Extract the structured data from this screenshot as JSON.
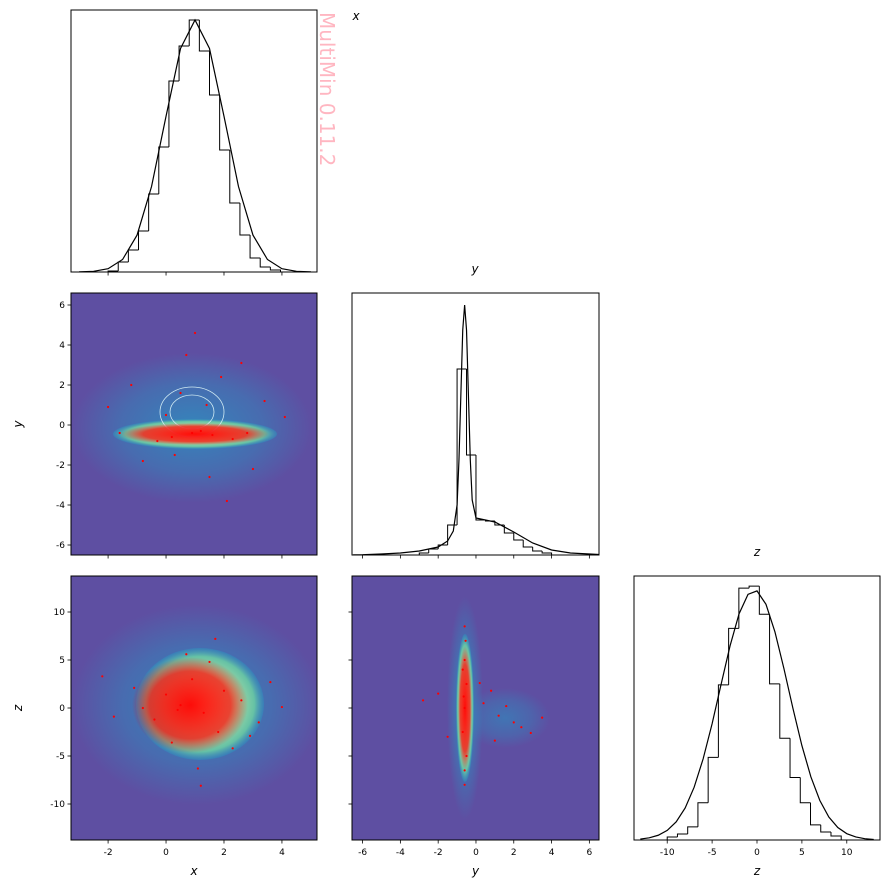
{
  "watermark": "MultiMin 0.11.2",
  "chart_data": [
    {
      "type": "histogram",
      "title": "x",
      "bins": [
        -2.0,
        -1.65,
        -1.3,
        -0.95,
        -0.6,
        -0.25,
        0.1,
        0.45,
        0.8,
        1.15,
        1.5,
        1.85,
        2.2,
        2.55,
        2.9,
        3.25,
        3.6,
        3.95
      ],
      "values": [
        1,
        10,
        22,
        41,
        78,
        125,
        191,
        226,
        252,
        221,
        177,
        122,
        69,
        37,
        14,
        5,
        2
      ],
      "color": "#000000",
      "curve": {
        "x": [
          -3,
          -2.5,
          -2,
          -1.5,
          -1,
          -0.5,
          0,
          0.5,
          1,
          1.5,
          2,
          2.5,
          3,
          3.5,
          4,
          4.5,
          5
        ],
        "y": [
          0.1,
          0.7,
          3.3,
          12.5,
          36.9,
          85.5,
          155.8,
          223.5,
          252,
          223.5,
          155.8,
          85.5,
          36.9,
          12.5,
          3.3,
          0.7,
          0.1
        ]
      },
      "xlim": [
        -3.28,
        5.21
      ],
      "xticks": [
        -2,
        0,
        2,
        4
      ],
      "ylim": [
        0,
        262
      ]
    },
    {
      "type": "scatter",
      "ylabel": "y",
      "color": "#ff0000",
      "facecolor": "#5e4fa2",
      "x": [
        0.2,
        0.9,
        1.6,
        2.3,
        -0.3,
        1.2,
        2.8,
        0.5,
        1.9,
        -1.2,
        3.4,
        0.7,
        1.5,
        -0.8,
        2.6,
        4.1,
        -2.0,
        1.0,
        2.1,
        0.3,
        3.0,
        -1.6,
        1.4,
        0.0
      ],
      "y": [
        -0.6,
        -0.4,
        -0.5,
        -0.7,
        -0.8,
        -0.3,
        -0.4,
        1.6,
        2.4,
        2.0,
        1.2,
        3.5,
        -2.6,
        -1.8,
        3.1,
        0.4,
        0.9,
        4.6,
        -3.8,
        -1.5,
        -2.2,
        -0.4,
        1.0,
        0.5
      ],
      "xlim": [
        -3.28,
        5.21
      ],
      "xticks": [
        -2,
        0,
        2,
        4
      ],
      "ylim": [
        -6.5,
        6.6
      ],
      "yticks": [
        -6,
        -4,
        -2,
        0,
        2,
        4,
        6
      ]
    },
    {
      "type": "histogram",
      "title": "y",
      "bins": [
        -3.0,
        -2.5,
        -2.0,
        -1.5,
        -1.0,
        -0.5,
        0.0,
        0.5,
        1.0,
        1.5,
        2.0,
        2.5,
        3.0,
        3.5,
        4.0
      ],
      "values": [
        2,
        6,
        10,
        30,
        186,
        100,
        35,
        34,
        30,
        22,
        15,
        8,
        4,
        2
      ],
      "color": "#000000",
      "curve": {
        "x": [
          -6.5,
          -6,
          -5,
          -4,
          -3,
          -2,
          -1.5,
          -1.2,
          -1,
          -0.9,
          -0.8,
          -0.7,
          -0.6,
          -0.5,
          -0.4,
          -0.3,
          -0.2,
          0,
          0.5,
          1,
          2,
          3,
          4,
          5,
          6,
          6.5
        ],
        "y": [
          0.2,
          0.3,
          1,
          2,
          4,
          8,
          14,
          24,
          50,
          95,
          160,
          225,
          250,
          225,
          160,
          95,
          55,
          37,
          35,
          33,
          23,
          12,
          5,
          2,
          1,
          0.5
        ]
      },
      "xlim": [
        -6.56,
        6.51
      ],
      "xticks": [
        -6,
        -4,
        -2,
        0,
        2,
        4,
        6
      ],
      "ylim": [
        0,
        262
      ]
    },
    {
      "type": "scatter",
      "xlabel": "x",
      "ylabel": "z",
      "color": "#ff0000",
      "facecolor": "#5e4fa2",
      "x": [
        0.5,
        1.3,
        2.0,
        -0.4,
        1.8,
        0.9,
        2.6,
        -1.1,
        3.2,
        0.2,
        1.5,
        2.3,
        -0.8,
        0.7,
        1.1,
        3.6,
        -1.8,
        2.9,
        0.0,
        1.7,
        4.0,
        -2.2,
        1.2,
        0.4
      ],
      "y": [
        0.3,
        -0.5,
        1.8,
        -1.2,
        -2.5,
        3.0,
        0.8,
        2.1,
        -1.5,
        -3.6,
        4.8,
        -4.2,
        0.0,
        5.6,
        -6.3,
        2.7,
        -0.9,
        -2.9,
        1.4,
        7.2,
        0.1,
        3.3,
        -8.1,
        -0.2
      ],
      "xlim": [
        -3.28,
        5.21
      ],
      "xticks": [
        -2,
        0,
        2,
        4
      ],
      "ylim": [
        -13.75,
        13.75
      ],
      "yticks": [
        -10,
        -5,
        0,
        5,
        10
      ]
    },
    {
      "type": "scatter",
      "xlabel": "y",
      "color": "#ff0000",
      "facecolor": "#5e4fa2",
      "x": [
        -0.6,
        -0.5,
        -0.7,
        -0.6,
        -0.5,
        -0.7,
        -0.6,
        -0.55,
        -0.65,
        0.4,
        1.2,
        2.0,
        0.8,
        1.6,
        2.9,
        -2.0,
        -1.5,
        3.5,
        0.2,
        -2.8,
        1.0,
        2.4,
        -0.6,
        -0.6
      ],
      "y": [
        0.0,
        2.5,
        -2.5,
        5.0,
        -5.0,
        4.0,
        -6.5,
        7.0,
        1.2,
        0.5,
        -0.8,
        -1.5,
        1.8,
        0.2,
        -2.6,
        1.5,
        -3.0,
        -1.0,
        2.6,
        0.8,
        -3.4,
        -2.0,
        -8.0,
        8.5
      ],
      "xlim": [
        -6.56,
        6.51
      ],
      "xticks": [
        -6,
        -4,
        -2,
        0,
        2,
        4,
        6
      ],
      "ylim": [
        -13.75,
        13.75
      ],
      "yticks": [
        -10,
        -5,
        0,
        5,
        10
      ]
    },
    {
      "type": "histogram",
      "title": "z",
      "xlabel": "z",
      "bins": [
        -10.0,
        -8.86,
        -7.72,
        -6.58,
        -5.44,
        -4.3,
        -3.16,
        -2.02,
        -0.88,
        0.26,
        1.4,
        2.54,
        3.68,
        4.82,
        5.96,
        7.1,
        8.24,
        9.38
      ],
      "values": [
        3,
        6,
        13,
        37,
        82,
        154,
        210,
        250,
        252,
        224,
        155,
        101,
        62,
        37,
        15,
        8,
        4
      ],
      "color": "#000000",
      "curve": {
        "x": [
          -13,
          -12,
          -11,
          -10,
          -9,
          -8,
          -7,
          -6,
          -5,
          -4,
          -3,
          -2,
          -1,
          0,
          1,
          2,
          3,
          4,
          5,
          6,
          7,
          8,
          9,
          10,
          11,
          12,
          13
        ],
        "y": [
          0.9,
          2.2,
          4.7,
          9.5,
          18.0,
          31.8,
          52.4,
          80.5,
          115.4,
          154.4,
          192.7,
          224.4,
          243.8,
          247.2,
          233.9,
          206.5,
          170.1,
          130.7,
          93.7,
          62.7,
          39.2,
          22.8,
          12.4,
          6.3,
          3.0,
          1.3,
          0.5
        ]
      },
      "xlim": [
        -13.7,
        13.7
      ],
      "xticks": [
        -10,
        -5,
        0,
        5,
        10
      ],
      "ylim": [
        0,
        262
      ]
    }
  ]
}
